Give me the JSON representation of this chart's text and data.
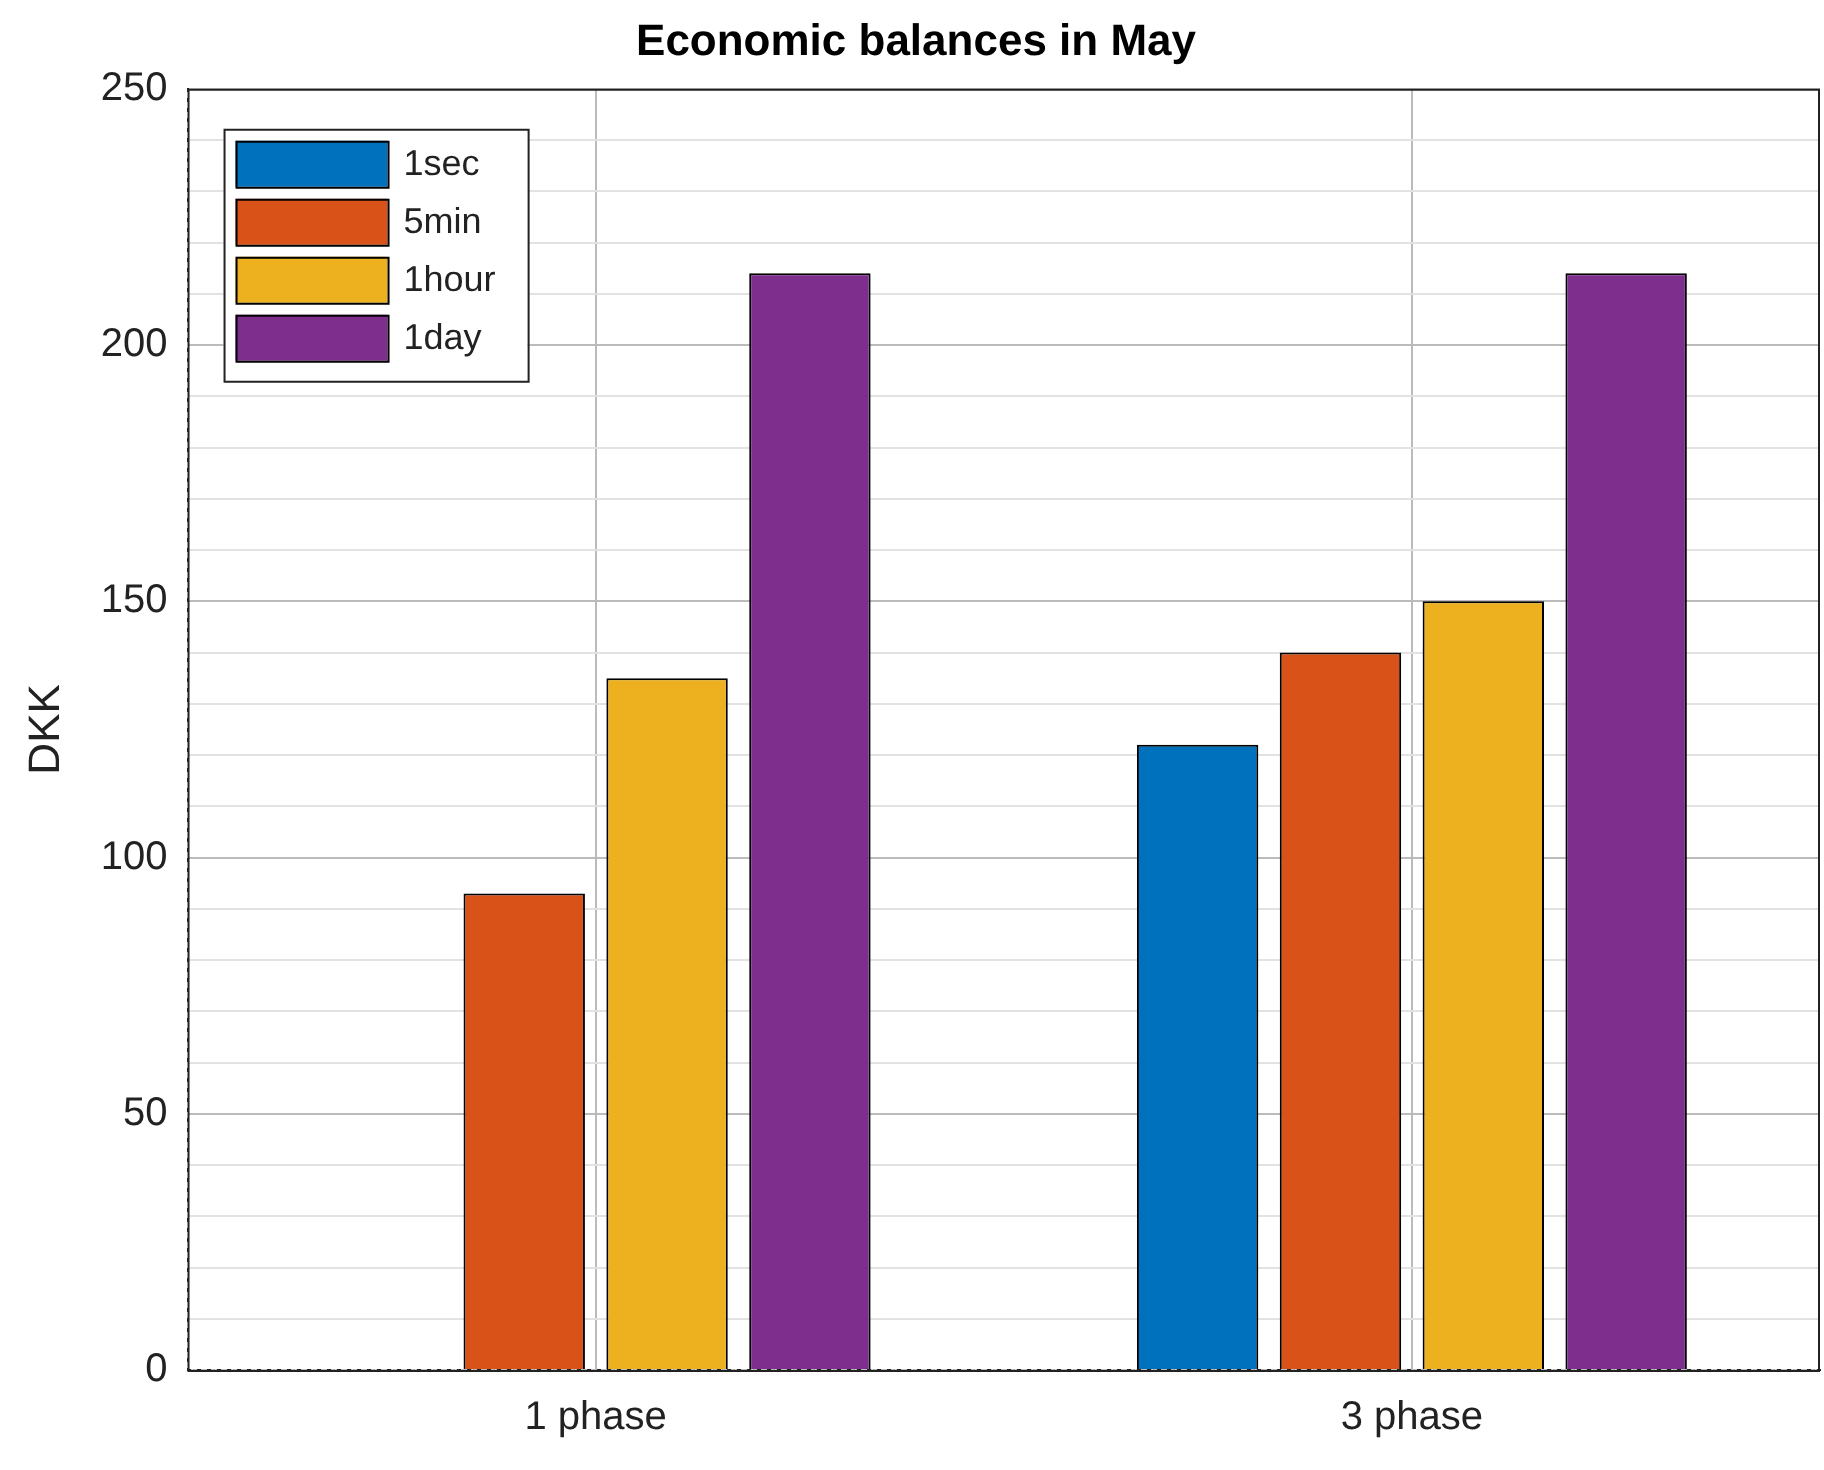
{
  "chart_data": {
    "type": "bar",
    "title": "Economic balances in May",
    "ylabel": "DKK",
    "categories": [
      "1 phase",
      "3 phase"
    ],
    "series": [
      {
        "name": "1sec",
        "color": "#0072bd",
        "values": [
          0,
          122
        ]
      },
      {
        "name": "5min",
        "color": "#d95319",
        "values": [
          93,
          140
        ]
      },
      {
        "name": "1hour",
        "color": "#edb120",
        "values": [
          135,
          150
        ]
      },
      {
        "name": "1day",
        "color": "#7e2f8e",
        "values": [
          214,
          214
        ]
      }
    ],
    "ylim": [
      0,
      250
    ],
    "yticks": [
      0,
      {
        "value": 10,
        "label": null
      },
      {
        "value": 20,
        "label": null
      },
      {
        "value": 30,
        "label": null
      },
      {
        "value": 40,
        "label": null
      },
      50,
      {
        "value": 60,
        "label": null
      },
      {
        "value": 70,
        "label": null
      },
      {
        "value": 80,
        "label": null
      },
      {
        "value": 90,
        "label": null
      },
      100,
      {
        "value": 110,
        "label": null
      },
      {
        "value": 120,
        "label": null
      },
      {
        "value": 130,
        "label": null
      },
      {
        "value": 140,
        "label": null
      },
      150,
      {
        "value": 160,
        "label": null
      },
      {
        "value": 170,
        "label": null
      },
      {
        "value": 180,
        "label": null
      },
      {
        "value": 190,
        "label": null
      },
      200,
      {
        "value": 210,
        "label": null
      },
      {
        "value": 220,
        "label": null
      },
      {
        "value": 230,
        "label": null
      },
      {
        "value": 240,
        "label": null
      },
      250
    ],
    "grid": true,
    "legend": "top left"
  }
}
